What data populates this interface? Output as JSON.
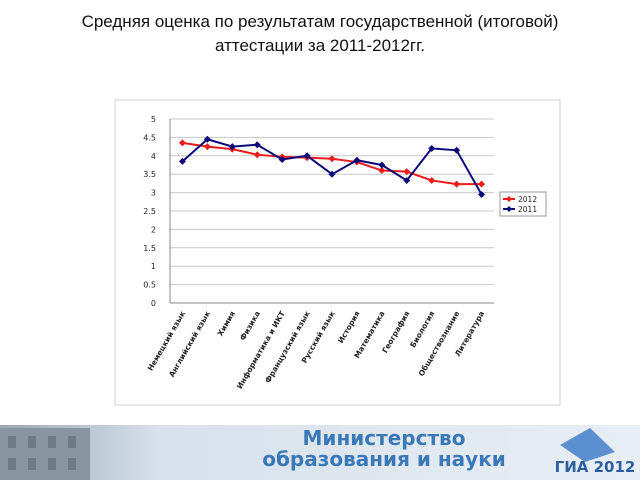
{
  "chart_data": {
    "type": "line",
    "title": "Средняя оценка по результатам государственной (итоговой) аттестации за 2011-2012гг.",
    "categories": [
      "Немецкий язык",
      "Английский язык",
      "Химия",
      "Физика",
      "Информатика и ИКТ",
      "Французский язык",
      "Русский язык",
      "История",
      "Математика",
      "География",
      "Биология",
      "Обществознание",
      "Литература"
    ],
    "series": [
      {
        "name": "2012",
        "color": "#ee1c1c",
        "values": [
          4.35,
          4.25,
          4.18,
          4.03,
          3.97,
          3.95,
          3.92,
          3.83,
          3.6,
          3.57,
          3.33,
          3.23,
          3.23
        ]
      },
      {
        "name": "2011",
        "color": "#0a0a7a",
        "values": [
          3.85,
          4.45,
          4.25,
          4.3,
          3.9,
          4.0,
          3.5,
          3.88,
          3.75,
          3.33,
          4.2,
          4.15,
          2.95
        ]
      }
    ],
    "ylim": [
      0,
      5
    ],
    "yticks": [
      0,
      0.5,
      1,
      1.5,
      2,
      2.5,
      3,
      3.5,
      4,
      4.5,
      5
    ],
    "grid": true,
    "legend": "right"
  },
  "footer": {
    "ministry_line1": "Министерство",
    "ministry_line2": "образования и науки",
    "logo": "ГИА 2012"
  }
}
